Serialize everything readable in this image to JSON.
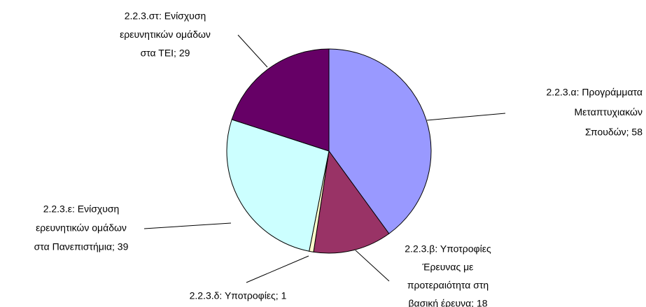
{
  "chart_data": {
    "type": "pie",
    "label_lines": [
      [
        "2.2.3.α: Προγράμματα",
        "Μεταπτυχιακών",
        "Σπουδών; 58"
      ],
      [
        "2.2.3.β: Υποτροφίες",
        "Έρευνας με",
        "προτεραιότητα στη",
        "βασική έρευνα; 18"
      ],
      [
        "2.2.3.δ: Υποτροφίες; 1"
      ],
      [
        "2.2.3.ε: Ενίσχυση",
        "ερευνητικών ομάδων",
        "στα Πανεπιστήμια; 39"
      ],
      [
        "2.2.3.στ: Ενίσχυση",
        "ερευνητικών ομάδων",
        "στα ΤΕΙ; 29"
      ]
    ],
    "values": [
      58,
      18,
      1,
      39,
      29
    ],
    "colors": [
      "#9999ff",
      "#993366",
      "#ffffcc",
      "#ccffff",
      "#660066"
    ]
  }
}
